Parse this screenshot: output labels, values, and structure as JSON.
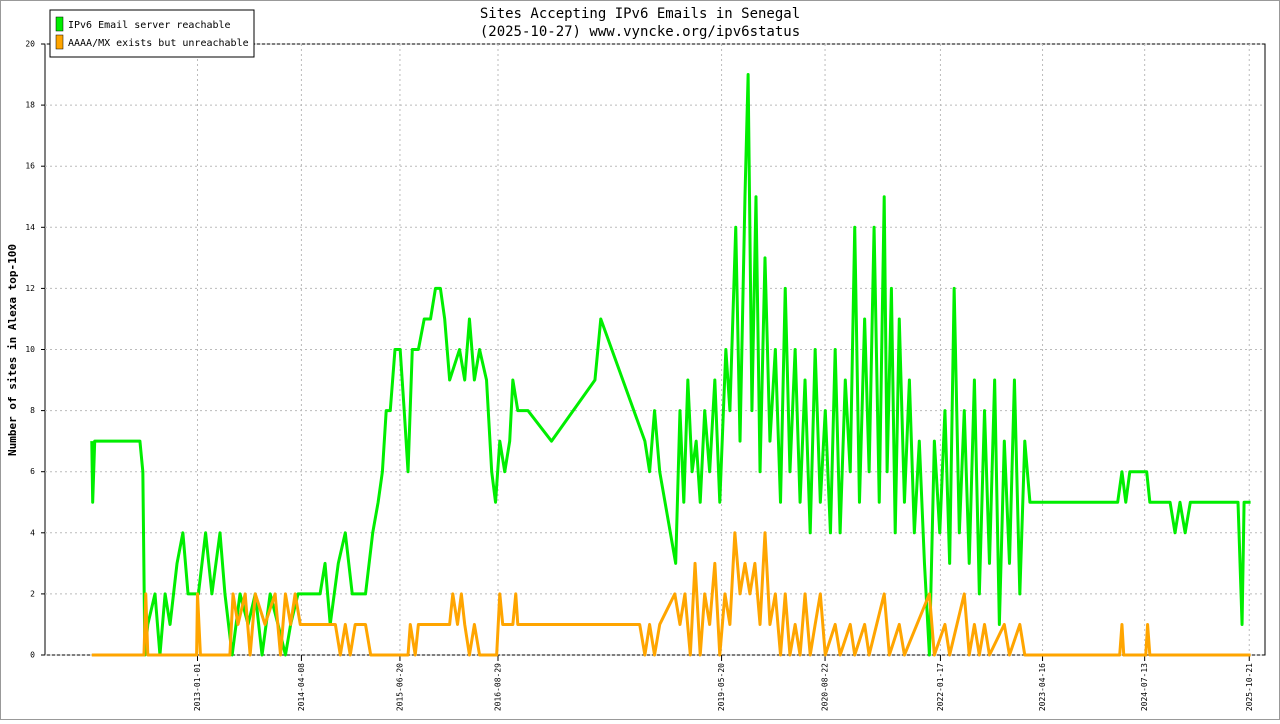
{
  "chart_data": {
    "type": "line",
    "title": "Sites Accepting IPv6 Emails in Senegal",
    "subtitle": "(2025-10-27) www.vyncke.org/ipv6status",
    "y_label": "Number of sites in Alexa top-100",
    "legend": "upper left",
    "grid": true,
    "xlim": [
      "2011-02-23",
      "2025-12-30"
    ],
    "xticks": [
      "2013-01-01",
      "2014-04-08",
      "2015-06-20",
      "2016-08-29",
      "2019-05-20",
      "2020-08-22",
      "2022-01-17",
      "2023-04-16",
      "2024-07-13",
      "2025-10-21"
    ],
    "ylim": [
      0,
      20
    ],
    "yticks": [
      0,
      2,
      4,
      6,
      8,
      10,
      12,
      14,
      16,
      18,
      20
    ],
    "series": [
      {
        "name": "IPv6 Email server reachable",
        "color": "#00ee00",
        "x": [
          "2011-09-19",
          "2011-09-23",
          "2011-10-02",
          "2012-04-20",
          "2012-05-03",
          "2012-05-12",
          "2012-05-25",
          "2012-06-26",
          "2012-07-18",
          "2012-08-10",
          "2012-09-01",
          "2012-10-02",
          "2012-10-28",
          "2012-11-20",
          "2013-01-05",
          "2013-02-06",
          "2013-03-06",
          "2013-04-11",
          "2013-05-03",
          "2013-06-04",
          "2013-07-09",
          "2013-08-14",
          "2013-09-15",
          "2013-10-15",
          "2013-11-20",
          "2013-12-25",
          "2014-01-27",
          "2014-02-19",
          "2014-03-24",
          "2014-06-30",
          "2014-07-22",
          "2014-08-14",
          "2014-09-19",
          "2014-10-20",
          "2014-11-20",
          "2015-01-18",
          "2015-02-19",
          "2015-03-15",
          "2015-04-03",
          "2015-04-20",
          "2015-05-08",
          "2015-05-29",
          "2015-06-21",
          "2015-07-09",
          "2015-07-26",
          "2015-08-14",
          "2015-09-10",
          "2015-10-06",
          "2015-11-03",
          "2015-11-25",
          "2015-12-17",
          "2016-01-05",
          "2016-01-27",
          "2016-03-11",
          "2016-04-03",
          "2016-04-24",
          "2016-05-16",
          "2016-06-08",
          "2016-07-09",
          "2016-08-01",
          "2016-08-18",
          "2016-09-06",
          "2016-09-28",
          "2016-10-20",
          "2016-11-03",
          "2016-11-25",
          "2017-01-09",
          "2017-04-24",
          "2017-11-03",
          "2017-11-29",
          "2018-06-13",
          "2018-07-04",
          "2018-07-26",
          "2018-08-18",
          "2018-10-28",
          "2018-11-16",
          "2018-12-03",
          "2018-12-21",
          "2019-01-09",
          "2019-01-27",
          "2019-02-14",
          "2019-03-06",
          "2019-03-28",
          "2019-04-20",
          "2019-05-12",
          "2019-06-08",
          "2019-06-26",
          "2019-07-22",
          "2019-08-10",
          "2019-09-01",
          "2019-09-15",
          "2019-10-02",
          "2019-10-20",
          "2019-11-07",
          "2019-11-29",
          "2019-12-21",
          "2020-01-14",
          "2020-02-06",
          "2020-02-27",
          "2020-03-19",
          "2020-04-11",
          "2020-05-03",
          "2020-05-25",
          "2020-06-17",
          "2020-07-09",
          "2020-08-01",
          "2020-08-23",
          "2020-09-15",
          "2020-10-06",
          "2020-10-28",
          "2020-11-20",
          "2020-12-12",
          "2021-01-01",
          "2021-01-22",
          "2021-02-14",
          "2021-03-06",
          "2021-03-28",
          "2021-04-20",
          "2021-05-12",
          "2021-05-25",
          "2021-06-13",
          "2021-06-30",
          "2021-07-18",
          "2021-08-10",
          "2021-09-01",
          "2021-09-23",
          "2021-10-15",
          "2021-11-07",
          "2021-11-29",
          "2021-12-21",
          "2022-01-14",
          "2022-02-06",
          "2022-02-27",
          "2022-03-19",
          "2022-04-11",
          "2022-05-03",
          "2022-05-25",
          "2022-06-17",
          "2022-07-09",
          "2022-08-01",
          "2022-08-23",
          "2022-09-15",
          "2022-10-06",
          "2022-10-28",
          "2022-11-20",
          "2022-12-12",
          "2023-01-05",
          "2023-01-27",
          "2023-02-19",
          "2024-03-15",
          "2024-04-03",
          "2024-04-20",
          "2024-05-08",
          "2024-07-22",
          "2024-08-05",
          "2024-11-03",
          "2024-11-25",
          "2024-12-17",
          "2025-01-09",
          "2025-02-01",
          "2025-09-01",
          "2025-09-19",
          "2025-09-28",
          "2025-10-27"
        ],
        "values": [
          7,
          5,
          7,
          7,
          6,
          0,
          1,
          2,
          0,
          2,
          1,
          3,
          4,
          2,
          2,
          4,
          2,
          4,
          2,
          0,
          2,
          1,
          2,
          0,
          2,
          1,
          0,
          1,
          2,
          2,
          3,
          1,
          3,
          4,
          2,
          2,
          4,
          5,
          6,
          8,
          8,
          10,
          10,
          8,
          6,
          10,
          10,
          11,
          11,
          12,
          12,
          11,
          9,
          10,
          9,
          11,
          9,
          10,
          9,
          6,
          5,
          7,
          6,
          7,
          9,
          8,
          8,
          7,
          9,
          11,
          7,
          6,
          8,
          6,
          3,
          8,
          5,
          9,
          6,
          7,
          5,
          8,
          6,
          9,
          5,
          10,
          8,
          14,
          7,
          15,
          19,
          8,
          15,
          6,
          13,
          7,
          10,
          5,
          12,
          6,
          10,
          5,
          9,
          4,
          10,
          5,
          8,
          4,
          10,
          4,
          9,
          6,
          14,
          5,
          11,
          6,
          14,
          5,
          15,
          6,
          12,
          4,
          11,
          5,
          9,
          4,
          7,
          3,
          0,
          7,
          4,
          8,
          3,
          12,
          4,
          8,
          3,
          9,
          2,
          8,
          3,
          9,
          1,
          7,
          3,
          9,
          2,
          7,
          5,
          5,
          6,
          5,
          6,
          6,
          5,
          5,
          4,
          5,
          4,
          5,
          5,
          1,
          5,
          5
        ]
      },
      {
        "name": "AAAA/MX exists but unreachable",
        "color": "#ffa500",
        "x": [
          "2011-09-19",
          "2012-05-08",
          "2012-05-16",
          "2012-05-25",
          "2012-12-28",
          "2013-01-01",
          "2013-01-14",
          "2013-05-25",
          "2013-06-08",
          "2013-06-30",
          "2013-08-01",
          "2013-08-23",
          "2013-09-15",
          "2013-10-28",
          "2013-12-12",
          "2014-01-05",
          "2014-01-27",
          "2014-02-19",
          "2014-03-11",
          "2014-04-03",
          "2014-09-06",
          "2014-09-28",
          "2014-10-20",
          "2014-11-11",
          "2014-12-03",
          "2015-01-18",
          "2015-02-10",
          "2015-07-26",
          "2015-08-05",
          "2015-08-27",
          "2015-09-10",
          "2016-01-27",
          "2016-02-10",
          "2016-03-02",
          "2016-03-19",
          "2016-04-03",
          "2016-04-24",
          "2016-05-16",
          "2016-06-08",
          "2016-08-23",
          "2016-09-06",
          "2016-09-19",
          "2016-11-03",
          "2016-11-16",
          "2016-11-25",
          "2018-05-21",
          "2018-06-13",
          "2018-07-04",
          "2018-07-26",
          "2018-08-18",
          "2018-10-24",
          "2018-11-16",
          "2018-12-08",
          "2019-01-01",
          "2019-01-22",
          "2019-02-14",
          "2019-03-06",
          "2019-03-28",
          "2019-04-20",
          "2019-05-12",
          "2019-06-04",
          "2019-06-26",
          "2019-07-18",
          "2019-08-10",
          "2019-09-01",
          "2019-09-23",
          "2019-10-15",
          "2019-11-07",
          "2019-11-29",
          "2019-12-21",
          "2020-01-14",
          "2020-02-06",
          "2020-02-27",
          "2020-03-19",
          "2020-04-11",
          "2020-05-03",
          "2020-05-25",
          "2020-06-17",
          "2020-07-09",
          "2020-08-01",
          "2020-08-23",
          "2020-10-06",
          "2020-10-28",
          "2020-12-12",
          "2021-01-01",
          "2021-02-14",
          "2021-03-06",
          "2021-05-12",
          "2021-06-04",
          "2021-07-18",
          "2021-08-10",
          "2021-11-29",
          "2021-12-21",
          "2022-02-06",
          "2022-02-27",
          "2022-05-03",
          "2022-05-25",
          "2022-06-17",
          "2022-07-09",
          "2022-08-01",
          "2022-08-23",
          "2022-10-28",
          "2022-11-20",
          "2023-01-05",
          "2023-01-27",
          "2024-03-24",
          "2024-04-03",
          "2024-04-11",
          "2024-07-18",
          "2024-07-26",
          "2024-08-05",
          "2025-10-27"
        ],
        "values": [
          0,
          0,
          2,
          0,
          0,
          2,
          0,
          0,
          2,
          1,
          2,
          0,
          2,
          1,
          2,
          0,
          2,
          1,
          2,
          1,
          1,
          0,
          1,
          0,
          1,
          1,
          0,
          0,
          1,
          0,
          1,
          1,
          2,
          1,
          2,
          1,
          0,
          1,
          0,
          0,
          2,
          1,
          1,
          2,
          1,
          1,
          0,
          1,
          0,
          1,
          2,
          1,
          2,
          0,
          3,
          0,
          2,
          1,
          3,
          0,
          2,
          1,
          4,
          2,
          3,
          2,
          3,
          1,
          4,
          1,
          2,
          0,
          2,
          0,
          1,
          0,
          2,
          0,
          1,
          2,
          0,
          1,
          0,
          1,
          0,
          1,
          0,
          2,
          0,
          1,
          0,
          2,
          0,
          1,
          0,
          2,
          0,
          1,
          0,
          1,
          0,
          1,
          0,
          1,
          0,
          0,
          1,
          0,
          0,
          1,
          0,
          0
        ]
      }
    ]
  }
}
